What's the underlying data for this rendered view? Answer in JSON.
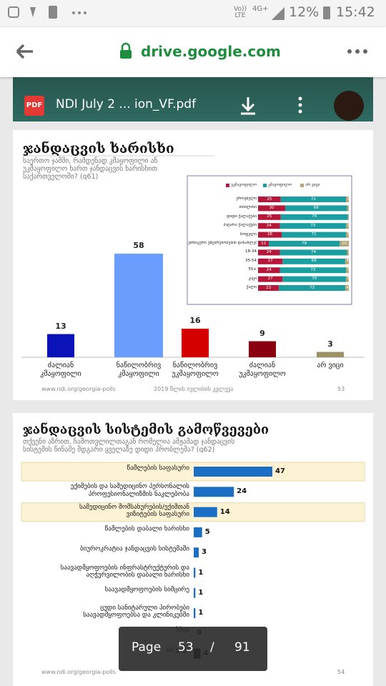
{
  "status_bar": {
    "volte": "Vo)) LTE",
    "network": "4G+",
    "battery": "12%",
    "time": "15:42"
  },
  "browser": {
    "url": "drive.google.com"
  },
  "viewer": {
    "icon": "PDF",
    "file_name": "NDI July 2 ... ion_VF.pdf",
    "page_label": "Page",
    "page": 53,
    "separator": "/",
    "total": 91
  },
  "slides": [
    {
      "footer_url": "www.ndi.org/georgia-polls",
      "footer_note": "2019 წლის ივლისის კვლევა",
      "page_number": 53
    },
    {
      "footer_url": "www.ndi.org/georgia-polls",
      "page_number": 54
    }
  ],
  "chart_data": [
    {
      "type": "bar",
      "title": "ჯანდაცვის ხარისხი",
      "subtitle": "საერთო ჯამში, რამდენად კმაყოფილი ან უკმაყოფილო ხართ ჯანდაცვის ხარისხით საქართველოში? (q61)",
      "categories": [
        "ძალიან კმაყოფილი",
        "ნაწილობრივ კმაყოფილი",
        "ნაწილობრივ უკმაყოფილო",
        "ძალიან უკმაყოფილო",
        "არ ვიცი"
      ],
      "values": [
        13,
        58,
        16,
        9,
        3
      ],
      "colors": [
        "#0b12b8",
        "#6b9cff",
        "#d40000",
        "#8a0010",
        "#9c9164"
      ]
    },
    {
      "type": "stacked_hbar",
      "categories": [
        "ეროვნული",
        "თბილისი",
        "დიდი ქალაქები",
        "პატარა ქალაქები",
        "სოფელი",
        "ეთნიკური უმცირესობების დასახლებები",
        "18-34",
        "35-54",
        "55+",
        "კაცი",
        "ქალი"
      ],
      "series": [
        {
          "name": "უკმაყოფილო",
          "color": "#b5173b",
          "values": [
            25,
            30,
            25,
            24,
            26,
            12,
            24,
            27,
            24,
            27,
            23
          ]
        },
        {
          "name": "კმაყოფილო",
          "color": "#1a9ea0",
          "values": [
            72,
            68,
            74,
            73,
            71,
            78,
            74,
            69,
            73,
            70,
            73
          ]
        },
        {
          "name": "არ ვიცი",
          "color": "#b3a77a",
          "values": [
            3,
            2,
            1,
            3,
            3,
            10,
            2,
            4,
            3,
            3,
            4
          ]
        }
      ]
    },
    {
      "type": "hbar",
      "title": "ჯანდაცვის სისტემის გამოწვევები",
      "subtitle": "თქვენი აზრით, ჩამოთვლილთაგან რომელია ამჟამად ჯანდაცვის სისტემის წინაშე მდგარი ყველაზე დიდი პრობლემა? (q62)",
      "categories": [
        "წამლების საფასური",
        "ექიმების და სამედიცინო პერსონალის პროფესიონალიზმის ნაკლებობა",
        "სამედიცინო მომსახურების/ექიმთან ვიზიტების საფასური",
        "წამლების დაბალი ხარისხი",
        "ბიუროკრატია ჯანდაცვის სისტემაში",
        "საავადმყოფოების ინფრასტრუქტურის და აღჭურვილობის დაბალი ხარისხი",
        "საავადმყოფოების სიმცირე",
        "ცუდი სანიტარული პირობები საავადმყოფოებსა და კლინიკებში",
        "სხვა",
        "არ ვიცი"
      ],
      "values": [
        47,
        24,
        14,
        5,
        3,
        1,
        1,
        1,
        0,
        4
      ],
      "colors": [
        "#1a6fc4",
        "#1a6fc4",
        "#1a6fc4",
        "#1a6fc4",
        "#1a6fc4",
        "#1a6fc4",
        "#1a6fc4",
        "#1a6fc4",
        "#1a6fc4",
        "#333333"
      ],
      "highlight": [
        true,
        false,
        true,
        false,
        false,
        false,
        false,
        false,
        false,
        false
      ]
    }
  ]
}
